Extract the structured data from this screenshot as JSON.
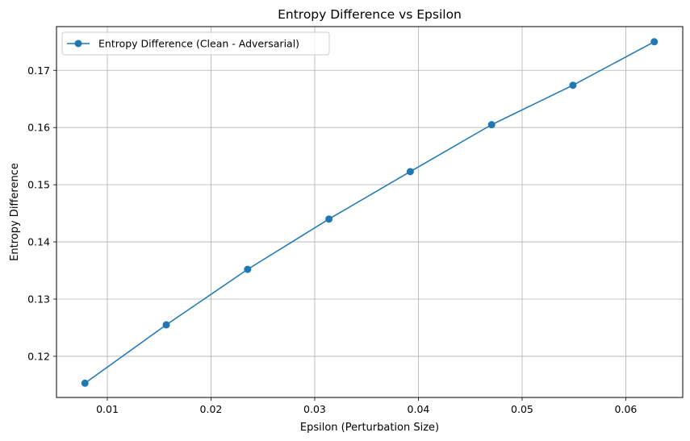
{
  "chart_data": {
    "type": "line",
    "title": "Entropy Difference vs Epsilon",
    "xlabel": "Epsilon (Perturbation Size)",
    "ylabel": "Entropy Difference",
    "xlim": [
      0.005098,
      0.06549
    ],
    "ylim": [
      0.1128,
      0.17765
    ],
    "xticks": [
      0.01,
      0.02,
      0.03,
      0.04,
      0.05,
      0.06
    ],
    "xtick_labels": [
      "0.01",
      "0.02",
      "0.03",
      "0.04",
      "0.05",
      "0.06"
    ],
    "yticks": [
      0.12,
      0.13,
      0.14,
      0.15,
      0.16,
      0.17
    ],
    "ytick_labels": [
      "0.12",
      "0.13",
      "0.14",
      "0.15",
      "0.16",
      "0.17"
    ],
    "grid": true,
    "legend_position": "top-left",
    "series": [
      {
        "name": "Entropy Difference (Clean - Adversarial)",
        "color": "#1f77b4",
        "marker": "circle",
        "x": [
          0.007843,
          0.015686,
          0.023529,
          0.031373,
          0.039216,
          0.047059,
          0.054902,
          0.062745
        ],
        "y": [
          0.1153,
          0.1255,
          0.1352,
          0.144,
          0.1523,
          0.1605,
          0.1674,
          0.175
        ]
      }
    ]
  }
}
